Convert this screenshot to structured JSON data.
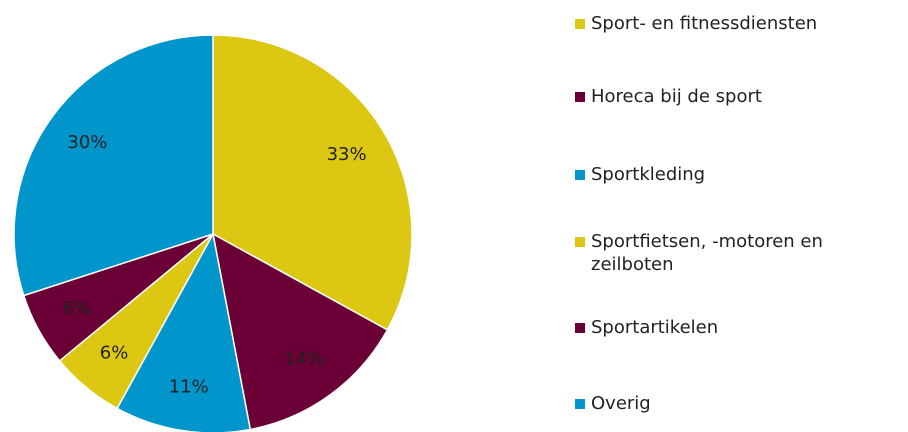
{
  "chart_data": {
    "type": "pie",
    "categories": [
      "Sport- en fitnessdiensten",
      "Horeca bij de sport",
      "Sportkleding",
      "Sportfietsen, -motoren en zeilboten",
      "Sportartikelen",
      "Overig"
    ],
    "values": [
      33,
      14,
      11,
      6,
      6,
      30
    ],
    "value_labels": [
      "33%",
      "14%",
      "11%",
      "6%",
      "6%",
      "30%"
    ],
    "colors": [
      "#dcc712",
      "#6a0035",
      "#0096cb",
      "#dcc712",
      "#6a0035",
      "#0096cb"
    ],
    "legend": "right"
  }
}
